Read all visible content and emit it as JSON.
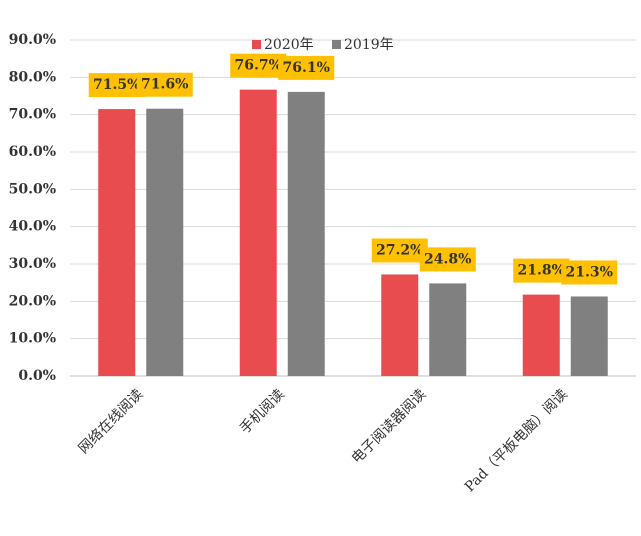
{
  "chart_data": {
    "type": "bar",
    "categories": [
      "网络在线阅读",
      "手机阅读",
      "电子阅读器阅读",
      "Pad（平板电脑）阅读"
    ],
    "series": [
      {
        "name": "2020年",
        "color": "#e84c4f",
        "values": [
          71.5,
          76.7,
          27.2,
          21.8
        ],
        "value_labels": [
          "71.5%",
          "76.7%",
          "27.2%",
          "21.8%"
        ]
      },
      {
        "name": "2019年",
        "color": "#808080",
        "values": [
          71.6,
          76.1,
          24.8,
          21.3
        ],
        "value_labels": [
          "71.6%",
          "76.1%",
          "24.8%",
          "21.3%"
        ]
      }
    ],
    "ylim": [
      0,
      90
    ],
    "yticks": [
      {
        "value": 0,
        "label": "0.0%"
      },
      {
        "value": 10,
        "label": "10.0%"
      },
      {
        "value": 20,
        "label": "20.0%"
      },
      {
        "value": 30,
        "label": "30.0%"
      },
      {
        "value": 40,
        "label": "40.0%"
      },
      {
        "value": 50,
        "label": "50.0%"
      },
      {
        "value": 60,
        "label": "60.0%"
      },
      {
        "value": 70,
        "label": "70.0%"
      },
      {
        "value": 80,
        "label": "80.0%"
      },
      {
        "value": 90,
        "label": "90.0%"
      }
    ],
    "grid": true,
    "label_box_color": "#ffc000"
  }
}
